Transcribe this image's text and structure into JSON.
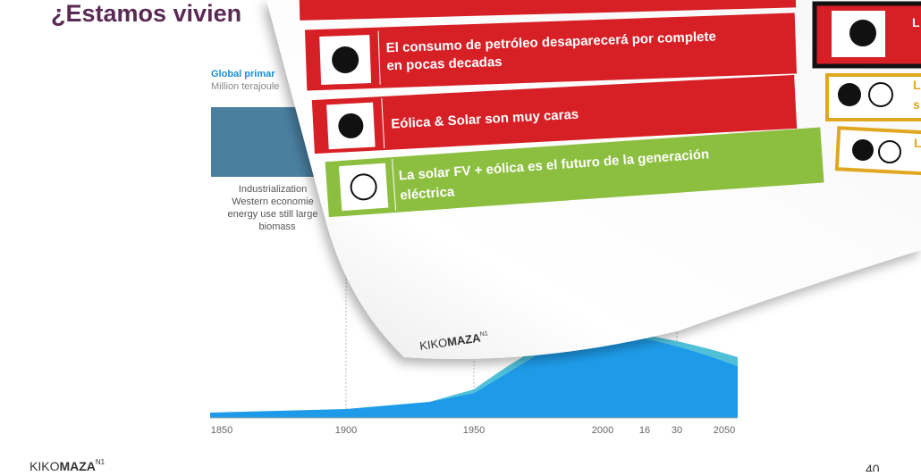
{
  "slide": {
    "title": "¿Estamos vivien",
    "chart": {
      "title": "Global primar",
      "subtitle": "Million terajoule",
      "annotation": [
        "Industrialization",
        "Western economie",
        "energy use still large",
        "biomass"
      ],
      "x_labels": [
        "1850",
        "1900",
        "1950",
        "2000",
        "16",
        "30",
        "2050"
      ]
    },
    "footer_logo": {
      "light": "KIKO",
      "bold": "MAZA",
      "sup": "N1"
    },
    "page_number": "40"
  },
  "overlay": {
    "items": [
      {
        "lines": [
          "El consumo de petróleo desaparecerá por complete",
          "en pocas decadas"
        ]
      },
      {
        "lines": [
          "Eólica & Solar son muy caras"
        ]
      },
      {
        "lines": [
          "La solar FV + eólica es el futuro de la generación",
          "eléctrica"
        ]
      }
    ],
    "side_letters": [
      "L",
      "L",
      "s",
      "L"
    ],
    "logo": {
      "light": "KIKO",
      "bold": "MAZA",
      "sup": "N1"
    }
  }
}
